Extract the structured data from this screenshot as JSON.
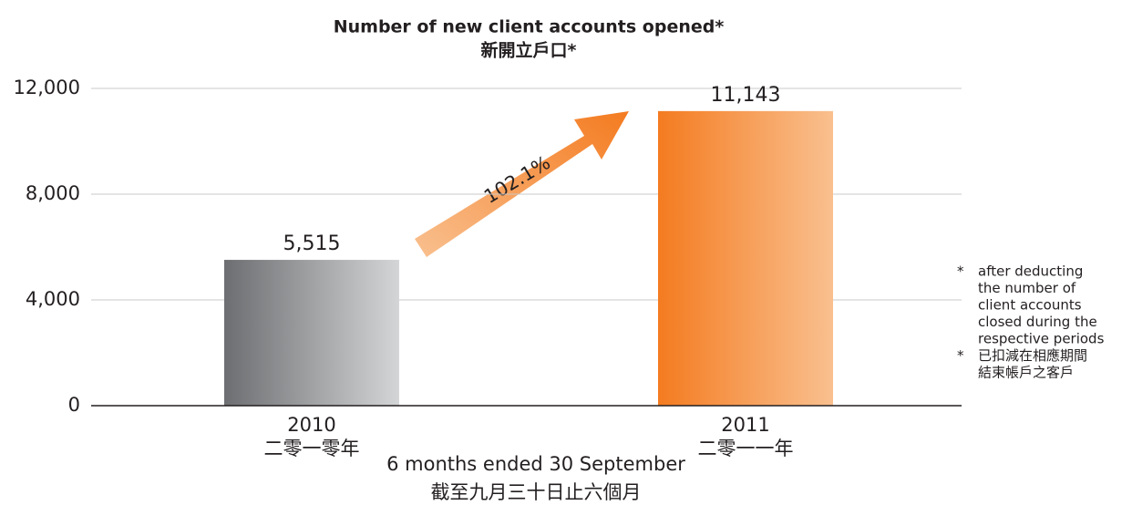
{
  "chart_data": {
    "type": "bar",
    "title": "Number of new client accounts opened*",
    "subtitle": "新開立戶口*",
    "x_label": "6 months ended 30 September",
    "x_label_zh": "截至九月三十日止六個月",
    "categories": [
      "2010",
      "2011"
    ],
    "categories_zh": [
      "二零一零年",
      "二零一一年"
    ],
    "values": [
      5515,
      11143
    ],
    "value_labels": [
      "5,515",
      "11,143"
    ],
    "colors": [
      [
        "#6d6e71",
        "#d4d5d6"
      ],
      [
        "#f47b20",
        "#f9c08f"
      ]
    ],
    "annotation": "102.1%",
    "ylim": [
      0,
      12000
    ],
    "yticks": [
      0,
      {
        "value": 4000,
        "label": "4,000"
      },
      {
        "value": 8000,
        "label": "8,000"
      },
      {
        "value": 12000,
        "label": "12,000"
      }
    ],
    "grid": true,
    "footnotes": [
      {
        "marker": "*",
        "lines": [
          "after deducting",
          "the number of",
          "client accounts",
          "closed during the",
          "respective periods"
        ]
      },
      {
        "marker": "*",
        "lines": [
          "已扣減在相應期間",
          "結束帳戶之客戶"
        ]
      }
    ]
  }
}
